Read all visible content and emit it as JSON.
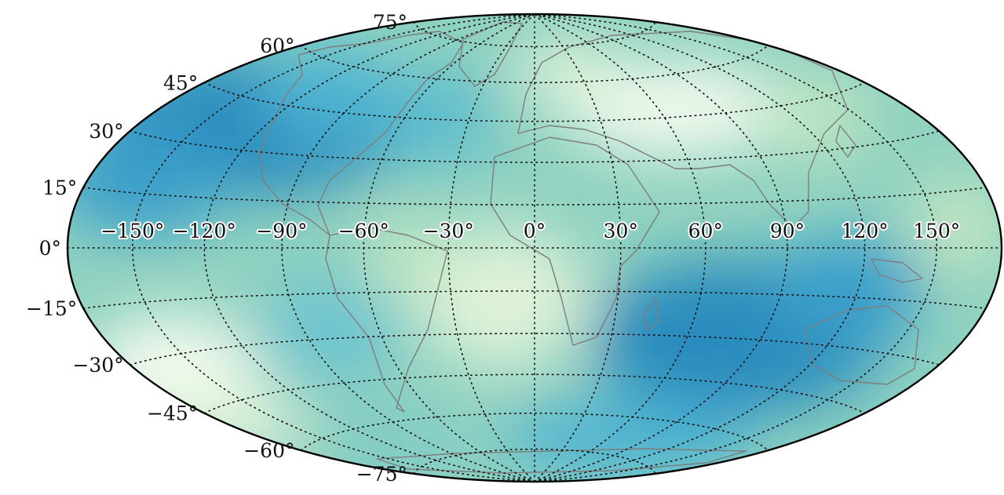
{
  "map": {
    "projection": "hammer",
    "graticule_style": "dotted",
    "coastline_color": "#7d7d7d",
    "colormap": [
      "#f3faed",
      "#c4e7c2",
      "#8fd2c0",
      "#4eb3d2",
      "#2b8cbe"
    ],
    "latitude_labels": [
      {
        "text": "75°",
        "lat": 75
      },
      {
        "text": "60°",
        "lat": 60
      },
      {
        "text": "45°",
        "lat": 45
      },
      {
        "text": "30°",
        "lat": 30
      },
      {
        "text": "15°",
        "lat": 15
      },
      {
        "text": "0°",
        "lat": 0
      },
      {
        "text": "−15°",
        "lat": -15
      },
      {
        "text": "−30°",
        "lat": -30
      },
      {
        "text": "−45°",
        "lat": -45
      },
      {
        "text": "−60°",
        "lat": -60
      },
      {
        "text": "−75°",
        "lat": -75
      }
    ],
    "longitude_labels": [
      {
        "text": "−150°",
        "lon": -150
      },
      {
        "text": "−120°",
        "lon": -120
      },
      {
        "text": "−90°",
        "lon": -90
      },
      {
        "text": "−60°",
        "lon": -60
      },
      {
        "text": "−30°",
        "lon": -30
      },
      {
        "text": "0°",
        "lon": 0
      },
      {
        "text": "30°",
        "lon": 30
      },
      {
        "text": "60°",
        "lon": 60
      },
      {
        "text": "90°",
        "lon": 90
      },
      {
        "text": "120°",
        "lon": 120
      },
      {
        "text": "150°",
        "lon": 150
      }
    ]
  }
}
